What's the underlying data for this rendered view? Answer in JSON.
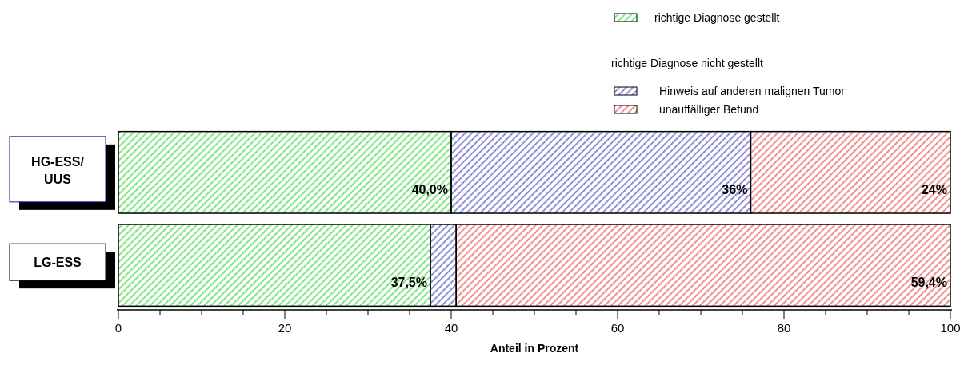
{
  "chart_data": {
    "type": "bar",
    "orientation": "horizontal",
    "stacked": true,
    "categories": [
      "HG-ESS/\nUUS",
      "LG-ESS"
    ],
    "xlabel": "Anteil in Prozent",
    "xlim": [
      0,
      100
    ],
    "xticks": [
      0,
      {
        "value": 5,
        "label": null
      },
      {
        "value": 10,
        "label": null
      },
      {
        "value": 15,
        "label": null
      },
      20,
      {
        "value": 25,
        "label": null
      },
      {
        "value": 30,
        "label": null
      },
      {
        "value": 35,
        "label": null
      },
      40,
      {
        "value": 45,
        "label": null
      },
      {
        "value": 50,
        "label": null
      },
      {
        "value": 55,
        "label": null
      },
      60,
      {
        "value": 65,
        "label": null
      },
      {
        "value": 70,
        "label": null
      },
      {
        "value": 75,
        "label": null
      },
      80,
      {
        "value": 85,
        "label": null
      },
      {
        "value": 90,
        "label": null
      },
      {
        "value": 95,
        "label": null
      },
      100
    ],
    "series": [
      {
        "name": "richtige Diagnose gestellt",
        "color": "#80e880",
        "values": [
          40.0,
          37.5
        ],
        "value_labels": [
          "40,0%",
          "37,5%"
        ]
      },
      {
        "name": "Hinweis auf anderen malignen Tumor",
        "color": "#9090d8",
        "values": [
          36,
          3.1
        ],
        "value_labels": [
          "36%",
          null
        ]
      },
      {
        "name": "unauffälliger Befund",
        "color": "#f09090",
        "values": [
          24,
          59.4
        ],
        "value_labels": [
          "24%",
          "59,4%"
        ]
      }
    ],
    "annotations": [
      "richtige Diagnose nicht gestellt"
    ],
    "legend": "top right",
    "grid": false
  }
}
